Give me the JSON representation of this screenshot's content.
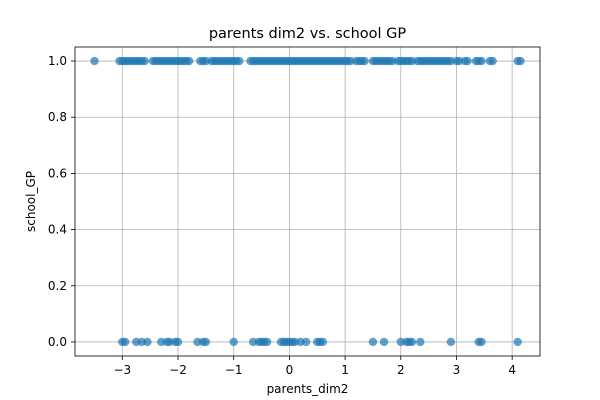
{
  "chart_data": {
    "type": "scatter",
    "title": "parents dim2 vs. school GP",
    "xlabel": "parents_dim2",
    "ylabel": "school_GP",
    "xlim": [
      -3.85,
      4.5
    ],
    "ylim": [
      -0.05,
      1.05
    ],
    "xticks": [
      -3,
      -2,
      -1,
      0,
      1,
      2,
      3,
      4
    ],
    "xtick_labels": [
      "−3",
      "−2",
      "−1",
      "0",
      "1",
      "2",
      "3",
      "4"
    ],
    "yticks": [
      0.0,
      0.2,
      0.4,
      0.6,
      0.8,
      1.0
    ],
    "ytick_labels": [
      "0.0",
      "0.2",
      "0.4",
      "0.6",
      "0.8",
      "1.0"
    ],
    "grid": true,
    "marker_color": "#1f77b4",
    "marker_alpha": 0.7,
    "series": [
      {
        "values_y": 1,
        "x": [
          -3.5,
          -3.05,
          -3.0,
          -2.95,
          -2.9,
          -2.85,
          -2.8,
          -2.75,
          -2.7,
          -2.65,
          -2.6,
          -2.45,
          -2.4,
          -2.35,
          -2.3,
          -2.25,
          -2.2,
          -2.15,
          -2.1,
          -2.05,
          -2.0,
          -1.95,
          -1.9,
          -1.85,
          -1.8,
          -1.6,
          -1.55,
          -1.5,
          -1.4,
          -1.35,
          -1.3,
          -1.25,
          -1.2,
          -1.15,
          -1.1,
          -1.05,
          -1.0,
          -0.95,
          -0.9,
          -0.7,
          -0.65,
          -0.6,
          -0.55,
          -0.5,
          -0.45,
          -0.4,
          -0.35,
          -0.3,
          -0.25,
          -0.2,
          -0.15,
          -0.1,
          -0.05,
          0.0,
          0.05,
          0.1,
          0.15,
          0.2,
          0.25,
          0.3,
          0.35,
          0.4,
          0.45,
          0.5,
          0.55,
          0.6,
          0.65,
          0.7,
          0.75,
          0.8,
          0.85,
          0.9,
          0.95,
          1.0,
          1.05,
          1.1,
          1.2,
          1.25,
          1.3,
          1.35,
          1.5,
          1.55,
          1.6,
          1.65,
          1.7,
          1.75,
          1.8,
          1.85,
          1.95,
          2.0,
          2.05,
          2.1,
          2.15,
          2.2,
          2.3,
          2.35,
          2.4,
          2.45,
          2.5,
          2.55,
          2.6,
          2.65,
          2.7,
          2.75,
          2.8,
          2.85,
          2.9,
          3.0,
          3.05,
          3.15,
          3.2,
          3.35,
          3.4,
          3.45,
          3.6,
          3.65,
          4.1,
          4.15
        ]
      },
      {
        "values_y": 0,
        "x": [
          -3.0,
          -2.95,
          -2.75,
          -2.65,
          -2.55,
          -2.3,
          -2.2,
          -2.15,
          -2.05,
          -2.0,
          -1.65,
          -1.55,
          -1.5,
          -1.0,
          -0.65,
          -0.55,
          -0.5,
          -0.45,
          -0.4,
          -0.15,
          -0.1,
          -0.05,
          0.0,
          0.05,
          0.1,
          0.2,
          0.3,
          0.5,
          0.55,
          0.6,
          1.5,
          1.7,
          2.0,
          2.1,
          2.15,
          2.2,
          2.35,
          2.9,
          3.4,
          3.45,
          4.1
        ]
      }
    ]
  }
}
